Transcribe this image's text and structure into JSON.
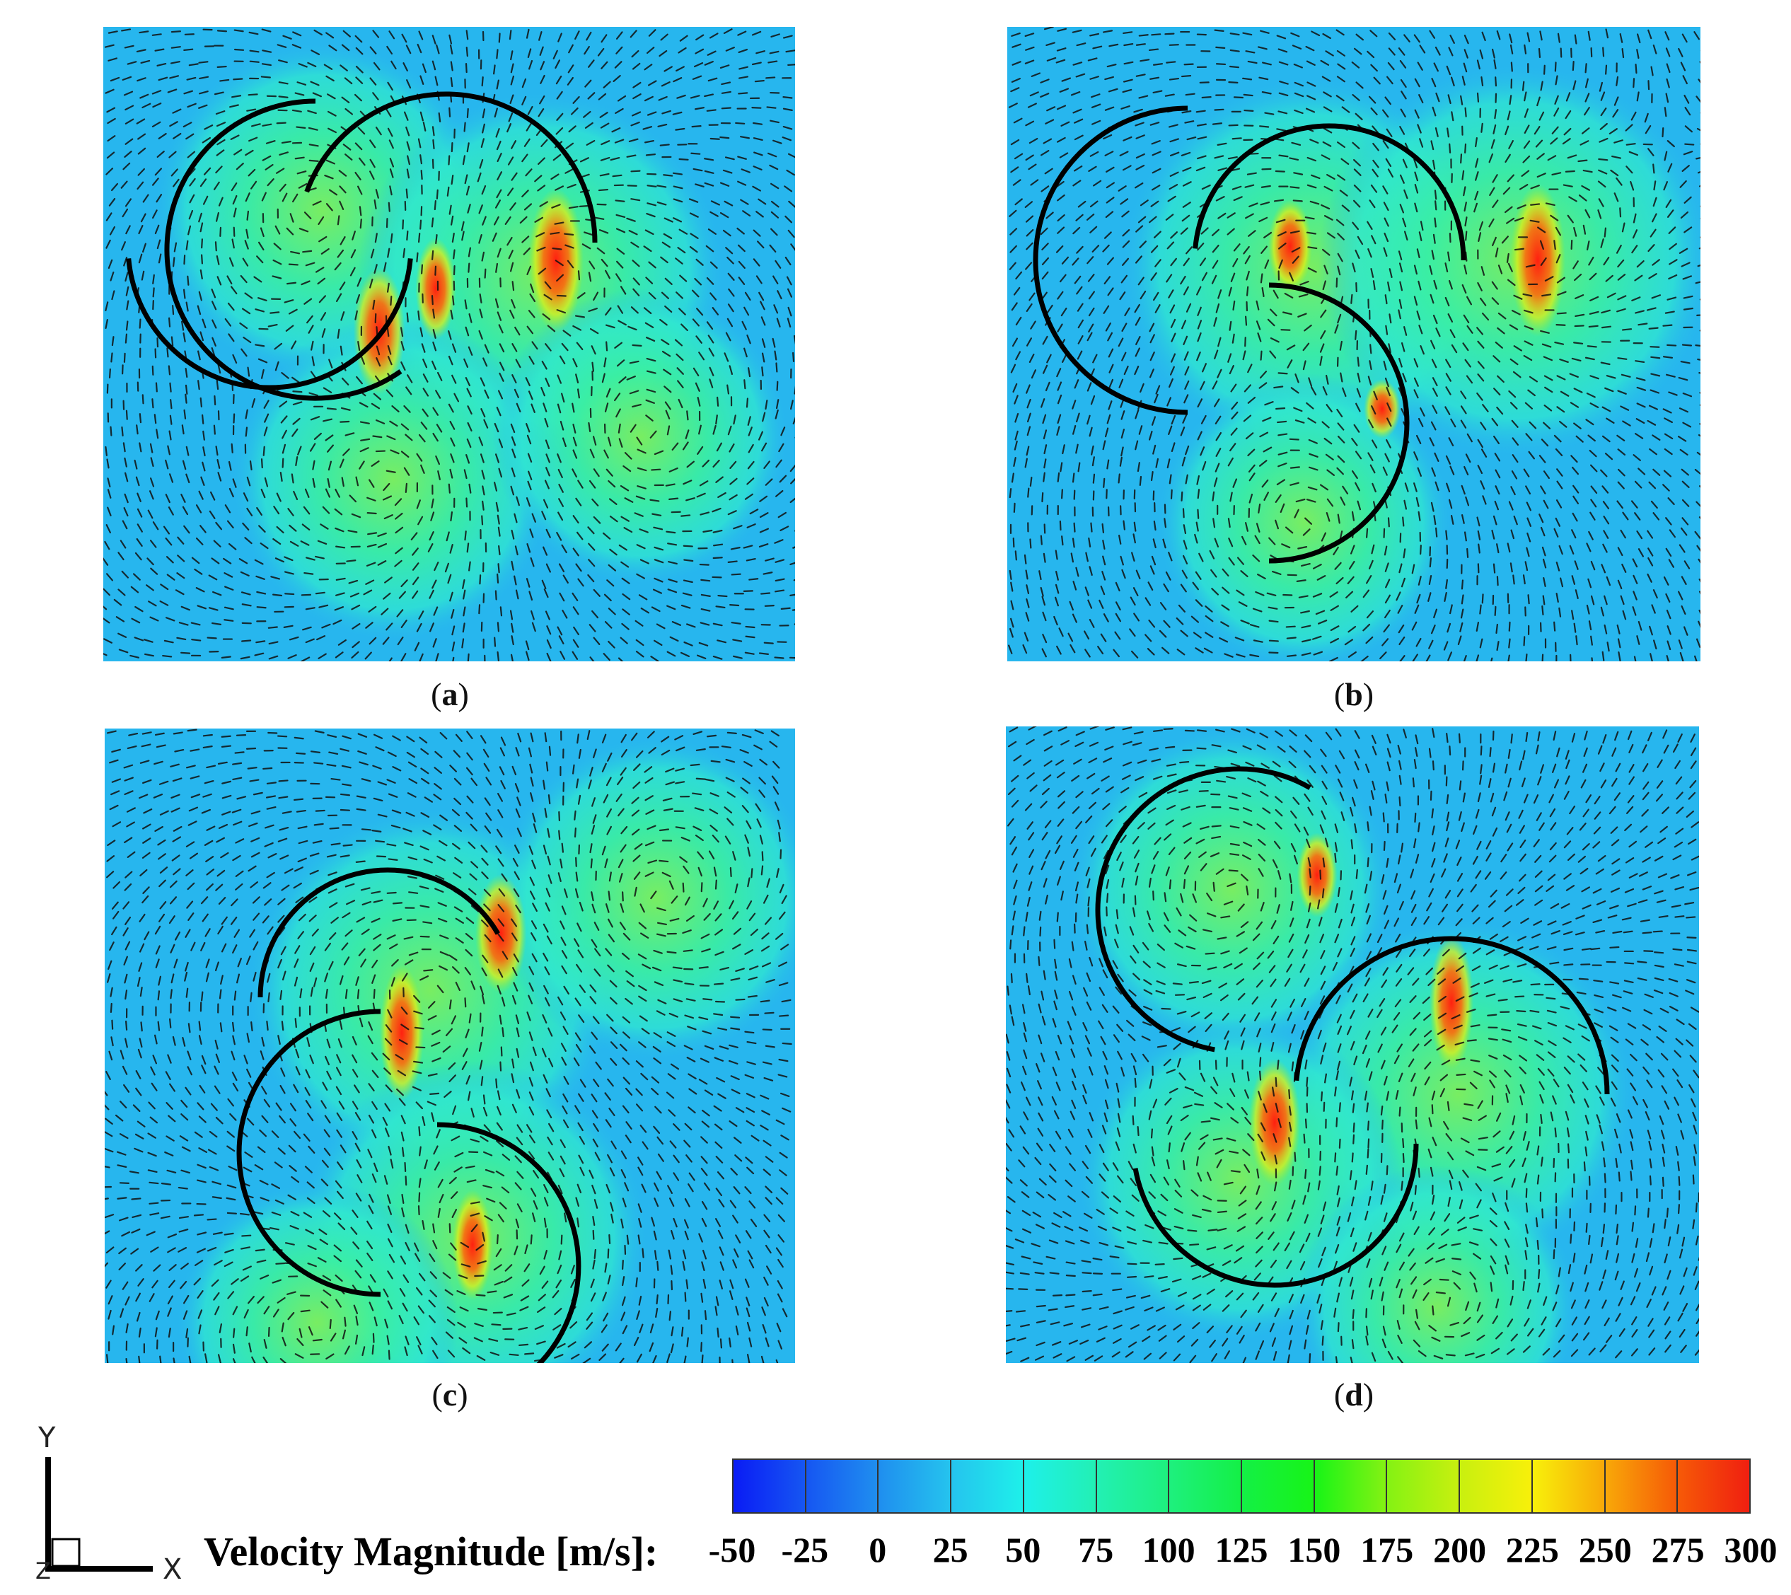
{
  "captions": [
    "a",
    "b",
    "c",
    "d"
  ],
  "axes": {
    "y_label": "Y",
    "x_label": "X",
    "z_label": "Z"
  },
  "legend": {
    "title": "Velocity Magnitude [m/s]:",
    "ticks": [
      "-50",
      "-25",
      "0",
      "25",
      "50",
      "75",
      "100",
      "125",
      "150",
      "175",
      "200",
      "225",
      "250",
      "275",
      "300"
    ],
    "colors": [
      "#0a1cf5",
      "#1656f2",
      "#1f8eef",
      "#25c3ee",
      "#1ef0ea",
      "#22f0b4",
      "#1ef07e",
      "#14f046",
      "#17f417",
      "#84f213",
      "#c8f00f",
      "#f8f00a",
      "#f8a808",
      "#f65a07",
      "#f01f10"
    ]
  },
  "colors": {
    "background": "#27b6ee",
    "streamline": "#111111",
    "blade": "#000000"
  }
}
